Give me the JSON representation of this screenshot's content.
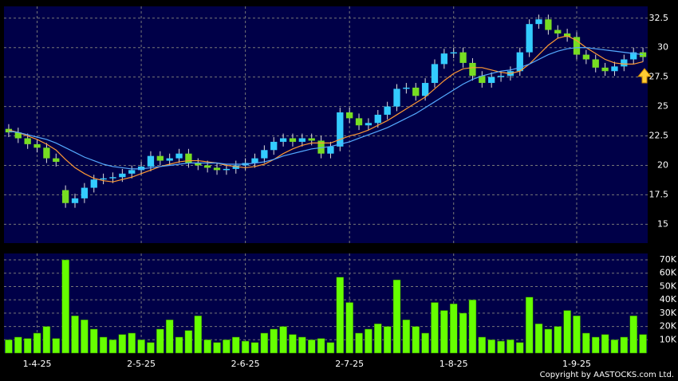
{
  "chart_data": [
    {
      "type": "candlestick",
      "up_color": "#33ccff",
      "down_color": "#77dd22",
      "wick_color": "#dddddd",
      "grid": true,
      "ylim": [
        13.4,
        33.5
      ],
      "yticks": [
        15,
        17.5,
        20,
        22.5,
        25,
        27.5,
        30,
        32.5
      ],
      "open": [
        23.1,
        22.8,
        22.3,
        21.8,
        21.5,
        20.6,
        17.9,
        16.8,
        17.2,
        18.1,
        18.8,
        18.9,
        19.0,
        19.3,
        19.6,
        19.9,
        20.8,
        20.4,
        20.6,
        21.0,
        20.2,
        20.0,
        19.8,
        19.6,
        19.7,
        20.0,
        20.2,
        20.6,
        21.3,
        22.0,
        22.3,
        22.0,
        22.3,
        22.1,
        21.0,
        21.6,
        24.5,
        24.0,
        23.4,
        23.6,
        24.3,
        25.0,
        26.5,
        26.6,
        25.9,
        27.0,
        28.6,
        29.5,
        29.6,
        28.7,
        27.6,
        27.0,
        27.5,
        27.6,
        28.0,
        29.6,
        32.0,
        32.4,
        31.5,
        31.2,
        30.9,
        29.4,
        29.0,
        28.3,
        28.0,
        28.4,
        29.0,
        29.6
      ],
      "high": [
        23.5,
        23.2,
        22.7,
        22.2,
        21.9,
        21.0,
        18.3,
        17.6,
        18.5,
        19.2,
        19.3,
        19.4,
        19.7,
        20.0,
        20.3,
        21.2,
        21.2,
        21.0,
        21.4,
        21.4,
        20.6,
        20.4,
        20.2,
        20.1,
        20.4,
        20.6,
        21.0,
        21.7,
        22.4,
        22.7,
        22.7,
        22.7,
        22.7,
        22.5,
        22.0,
        24.9,
        24.9,
        24.4,
        24.0,
        24.7,
        25.4,
        26.9,
        27.0,
        27.0,
        27.4,
        29.0,
        29.9,
        30.0,
        30.0,
        29.1,
        28.0,
        27.9,
        28.0,
        28.4,
        30.0,
        32.4,
        32.8,
        32.8,
        31.9,
        31.6,
        31.3,
        29.8,
        29.4,
        28.7,
        28.8,
        29.4,
        30.0,
        30.0
      ],
      "low": [
        22.4,
        21.9,
        21.4,
        21.1,
        20.2,
        19.9,
        16.4,
        16.4,
        16.8,
        17.7,
        18.4,
        18.5,
        18.6,
        18.9,
        19.2,
        19.5,
        20.0,
        20.0,
        20.2,
        19.8,
        19.6,
        19.4,
        19.2,
        19.2,
        19.3,
        19.6,
        19.8,
        20.2,
        20.9,
        21.6,
        21.6,
        21.6,
        21.7,
        20.6,
        20.6,
        21.2,
        23.6,
        23.0,
        23.0,
        23.2,
        23.9,
        24.6,
        26.1,
        25.5,
        25.5,
        26.6,
        28.2,
        29.1,
        28.3,
        27.2,
        26.6,
        26.6,
        27.1,
        27.2,
        27.6,
        29.2,
        31.6,
        31.1,
        30.8,
        30.5,
        29.0,
        28.6,
        27.9,
        27.6,
        27.6,
        28.0,
        28.6,
        28.8
      ],
      "close": [
        22.8,
        22.3,
        21.8,
        21.5,
        20.6,
        20.3,
        16.8,
        17.2,
        18.1,
        18.8,
        18.9,
        19.0,
        19.3,
        19.6,
        19.9,
        20.8,
        20.4,
        20.6,
        21.0,
        20.2,
        20.0,
        19.8,
        19.6,
        19.7,
        20.0,
        20.2,
        20.6,
        21.3,
        22.0,
        22.3,
        22.0,
        22.3,
        22.1,
        21.0,
        21.6,
        24.5,
        24.0,
        23.4,
        23.6,
        24.3,
        25.0,
        26.5,
        26.6,
        25.9,
        27.0,
        28.6,
        29.5,
        29.6,
        28.7,
        27.6,
        27.0,
        27.5,
        27.6,
        28.0,
        29.6,
        32.0,
        32.4,
        31.5,
        31.2,
        30.9,
        29.4,
        29.0,
        28.3,
        28.0,
        28.4,
        29.0,
        29.6,
        29.2
      ],
      "series": [
        {
          "color": "#ff9933",
          "values": [
            23.0,
            22.8,
            22.5,
            22.2,
            21.8,
            21.3,
            20.5,
            19.8,
            19.3,
            18.9,
            18.7,
            18.6,
            18.8,
            19.0,
            19.3,
            19.6,
            19.9,
            20.1,
            20.3,
            20.4,
            20.4,
            20.3,
            20.2,
            20.0,
            19.9,
            19.8,
            19.9,
            20.1,
            20.5,
            21.0,
            21.4,
            21.7,
            21.9,
            21.9,
            21.9,
            22.2,
            22.5,
            22.7,
            23.0,
            23.4,
            23.8,
            24.3,
            24.8,
            25.3,
            25.8,
            26.5,
            27.2,
            27.8,
            28.2,
            28.3,
            28.3,
            28.1,
            27.9,
            27.8,
            28.0,
            28.6,
            29.4,
            30.2,
            30.8,
            31.0,
            30.6,
            30.0,
            29.5,
            29.0,
            28.7,
            28.6,
            28.6,
            28.8
          ]
        },
        {
          "color": "#55aaff",
          "values": [
            22.9,
            22.8,
            22.6,
            22.4,
            22.2,
            21.9,
            21.5,
            21.1,
            20.7,
            20.4,
            20.1,
            19.9,
            19.8,
            19.7,
            19.7,
            19.8,
            19.9,
            20.0,
            20.1,
            20.2,
            20.2,
            20.2,
            20.2,
            20.1,
            20.1,
            20.1,
            20.2,
            20.3,
            20.5,
            20.8,
            21.0,
            21.2,
            21.4,
            21.5,
            21.6,
            21.8,
            22.0,
            22.3,
            22.6,
            22.9,
            23.2,
            23.6,
            24.0,
            24.4,
            24.9,
            25.4,
            25.9,
            26.4,
            26.9,
            27.3,
            27.6,
            27.8,
            28.0,
            28.1,
            28.3,
            28.6,
            29.0,
            29.4,
            29.7,
            29.9,
            30.0,
            30.0,
            29.9,
            29.8,
            29.7,
            29.6,
            29.5,
            29.4
          ]
        }
      ]
    },
    {
      "type": "bar",
      "color": "#66ff00",
      "grid": true,
      "categories": [
        null,
        null,
        null,
        "1-4-25",
        null,
        null,
        null,
        null,
        null,
        null,
        null,
        null,
        null,
        null,
        "2-5-25",
        null,
        null,
        null,
        null,
        null,
        null,
        null,
        null,
        null,
        null,
        "2-6-25",
        null,
        null,
        null,
        null,
        null,
        null,
        null,
        null,
        null,
        null,
        "2-7-25",
        null,
        null,
        null,
        null,
        null,
        null,
        null,
        null,
        null,
        null,
        "1-8-25",
        null,
        null,
        null,
        null,
        null,
        null,
        null,
        null,
        null,
        null,
        null,
        null,
        "1-9-25",
        null,
        null,
        null,
        null,
        null,
        null,
        null
      ],
      "values": [
        10000,
        12000,
        11000,
        15000,
        20000,
        11000,
        70000,
        28000,
        25000,
        18000,
        12000,
        10000,
        14000,
        15000,
        10000,
        8000,
        18000,
        25000,
        12000,
        17000,
        28000,
        10000,
        8000,
        10000,
        12000,
        9000,
        8000,
        15000,
        18000,
        20000,
        14000,
        12000,
        10000,
        11000,
        8000,
        57000,
        38000,
        15000,
        18000,
        22000,
        20000,
        55000,
        25000,
        20000,
        15000,
        38000,
        32000,
        37000,
        30000,
        40000,
        12000,
        10000,
        9000,
        10000,
        8000,
        42000,
        22000,
        18000,
        20000,
        32000,
        28000,
        15000,
        12000,
        14000,
        10000,
        12000,
        28000,
        14000
      ],
      "ylim": [
        0,
        74800
      ],
      "yticks": [
        {
          "value": 10000,
          "label": "10K"
        },
        {
          "value": 20000,
          "label": "20K"
        },
        {
          "value": 30000,
          "label": "30K"
        },
        {
          "value": 40000,
          "label": "40K"
        },
        {
          "value": 50000,
          "label": "50K"
        },
        {
          "value": 60000,
          "label": "60K"
        },
        {
          "value": 70000,
          "label": "70K"
        }
      ]
    }
  ],
  "copyright": "Copyright by AASTOCKS.com Ltd."
}
